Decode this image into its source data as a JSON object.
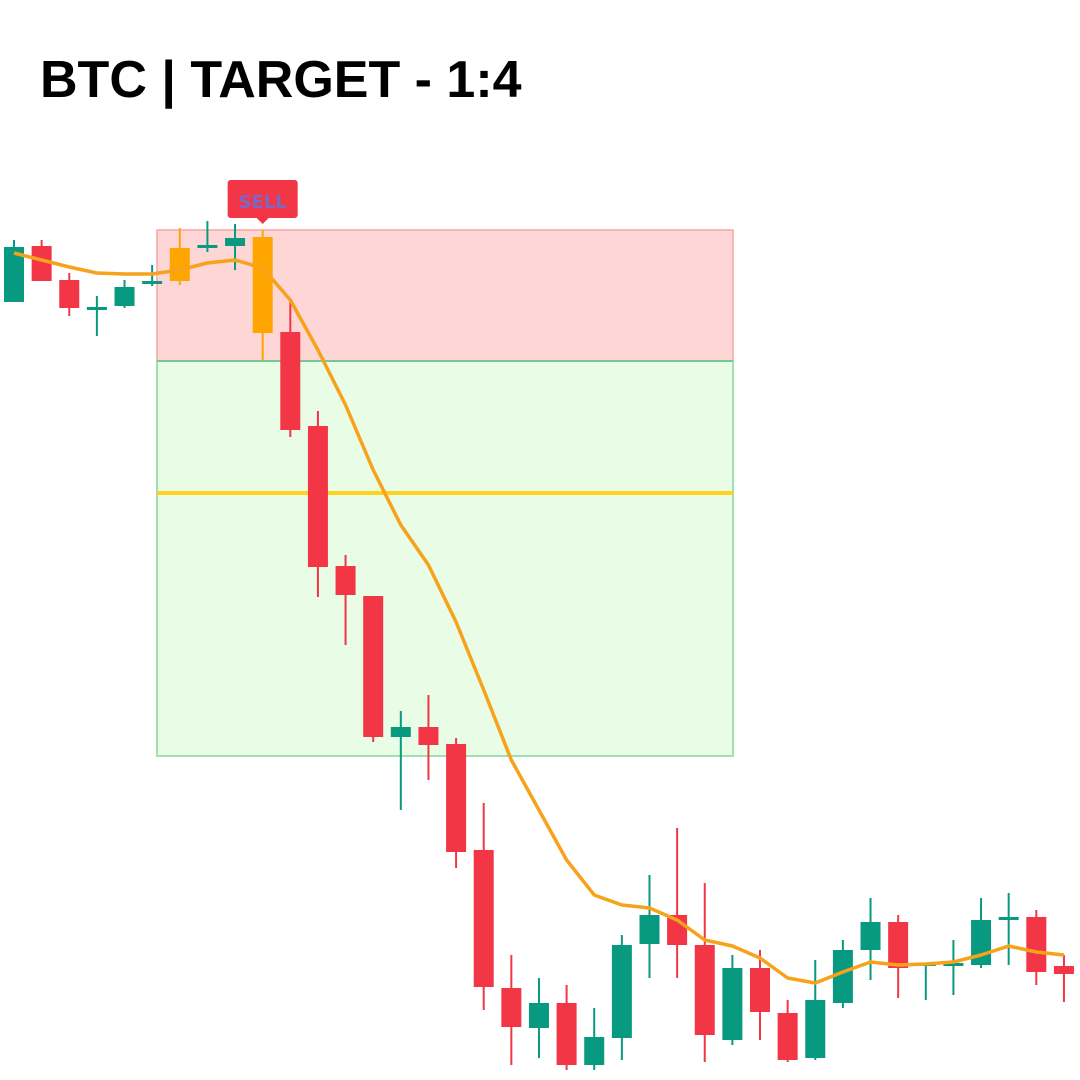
{
  "chart_data": {
    "type": "candlestick",
    "title": "BTC | TARGET - 1:4",
    "ylim": [
      0,
      1080
    ],
    "open": [
      778,
      834,
      800,
      771,
      774,
      796,
      799,
      833,
      834,
      843,
      748,
      654,
      514,
      484,
      343,
      353,
      336,
      230,
      92,
      52,
      77,
      15,
      42,
      136,
      165,
      135,
      40,
      112,
      67,
      22,
      77,
      130,
      158,
      115,
      115,
      115,
      161,
      163,
      114
    ],
    "high": [
      840,
      840,
      807,
      784,
      800,
      815,
      852,
      859,
      856,
      850,
      780,
      669,
      525,
      484,
      369,
      385,
      342,
      277,
      125,
      102,
      95,
      72,
      145,
      205,
      252,
      197,
      125,
      130,
      80,
      120,
      140,
      182,
      165,
      117,
      140,
      182,
      187,
      170,
      125
    ],
    "low": [
      778,
      799,
      764,
      744,
      772,
      794,
      795,
      828,
      810,
      720,
      643,
      483,
      435,
      338,
      270,
      300,
      212,
      70,
      15,
      22,
      10,
      10,
      20,
      102,
      102,
      18,
      35,
      40,
      18,
      20,
      72,
      100,
      82,
      80,
      85,
      112,
      115,
      95,
      78
    ],
    "close": [
      833,
      799,
      772,
      773,
      793,
      799,
      832,
      835,
      842,
      747,
      650,
      513,
      485,
      343,
      353,
      335,
      228,
      93,
      53,
      77,
      15,
      43,
      135,
      165,
      135,
      45,
      112,
      68,
      20,
      80,
      130,
      158,
      112,
      117,
      117,
      160,
      163,
      108,
      106
    ],
    "colors": [
      "#089981",
      "#f23645",
      "#f23645",
      "#089981",
      "#089981",
      "#089981",
      "#ffa500",
      "#089981",
      "#089981",
      "#ffa500",
      "#f23645",
      "#f23645",
      "#f23645",
      "#f23645",
      "#089981",
      "#f23645",
      "#f23645",
      "#f23645",
      "#f23645",
      "#089981",
      "#f23645",
      "#089981",
      "#089981",
      "#089981",
      "#f23645",
      "#f23645",
      "#089981",
      "#f23645",
      "#f23645",
      "#089981",
      "#089981",
      "#089981",
      "#f23645",
      "#089981",
      "#089981",
      "#089981",
      "#089981",
      "#f23645",
      "#f23645"
    ],
    "ma": {
      "color": "#f7a21b",
      "values": [
        827,
        820,
        813,
        807,
        806,
        806,
        810,
        817,
        820,
        812,
        780,
        730,
        675,
        610,
        555,
        515,
        458,
        390,
        320,
        270,
        220,
        185,
        175,
        172,
        160,
        140,
        134,
        122,
        102,
        97,
        108,
        118,
        115,
        116,
        118,
        125,
        134,
        128,
        125
      ]
    },
    "stop_loss": 850,
    "entry": 719,
    "midline": 587,
    "target": 324,
    "risk_color": "#ffd6d6",
    "reward_color": "#e8fce6",
    "midline_color": "#ffd21f",
    "annotation": {
      "text": "SELL",
      "color": "#f23645",
      "text_color": "#7868c8"
    }
  }
}
